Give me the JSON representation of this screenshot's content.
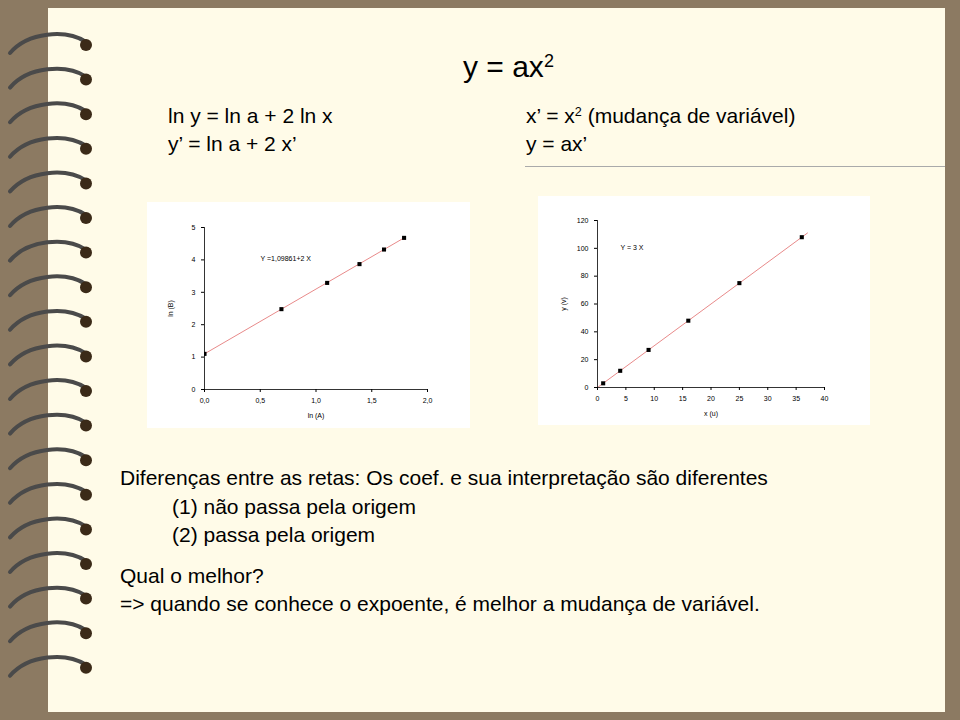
{
  "slide": {
    "title": [
      "y = ax",
      "2"
    ],
    "left_formulas": [
      [
        "ln y = ln a + 2 ln x"
      ],
      [
        "y’ = ln a + 2 x’"
      ]
    ],
    "right_formulas": [
      [
        "x’ = x",
        "2",
        " (mudança de variável)"
      ],
      [
        "y = ax’"
      ]
    ],
    "body": [
      "Diferenças entre as retas: Os coef. e sua interpretação são diferentes",
      "(1) não passa pela origem",
      "(2) passa pela origem",
      "Qual o melhor?",
      "=> quando se conhece o expoente, é melhor a mudança de variável."
    ]
  },
  "chart_data": [
    {
      "type": "scatter",
      "x_label": "ln (A)",
      "y_label": "ln (B)",
      "annotations": [
        "Y =1,09861+2 X"
      ],
      "xlim": [
        0,
        2
      ],
      "ylim": [
        0,
        5
      ],
      "xticks": [
        {
          "value": 0,
          "label": "0,0"
        },
        {
          "value": 0.5,
          "label": "0,5"
        },
        {
          "value": 1,
          "label": "1,0"
        },
        {
          "value": 1.5,
          "label": "1,5"
        },
        {
          "value": 2,
          "label": "2,0"
        }
      ],
      "yticks": [
        0,
        1,
        2,
        3,
        4,
        5
      ],
      "grid": false,
      "series": [
        {
          "type": "line",
          "color": "#e88a8a",
          "x": [
            0,
            1.8
          ],
          "values": [
            1.1,
            4.7
          ]
        },
        {
          "type": "scatter",
          "marker": "square",
          "color": "#000000",
          "x": [
            0,
            0.69,
            1.1,
            1.39,
            1.61,
            1.79
          ],
          "values": [
            1.1,
            2.48,
            3.29,
            3.87,
            4.32,
            4.68
          ]
        }
      ]
    },
    {
      "type": "scatter",
      "x_label": "x (u)",
      "y_label": "y (v)",
      "annotations": [
        "Y = 3 X"
      ],
      "xlim": [
        0,
        40
      ],
      "ylim": [
        0,
        120
      ],
      "xticks": [
        0,
        5,
        10,
        15,
        20,
        25,
        30,
        35,
        40
      ],
      "yticks": [
        0,
        20,
        40,
        60,
        80,
        100,
        120
      ],
      "grid": false,
      "series": [
        {
          "type": "line",
          "color": "#e88a8a",
          "x": [
            0,
            37
          ],
          "values": [
            0,
            111
          ]
        },
        {
          "type": "scatter",
          "marker": "square",
          "color": "#000000",
          "x": [
            1,
            4,
            9,
            16,
            25,
            36
          ],
          "values": [
            3,
            12,
            27,
            48,
            75,
            108
          ]
        }
      ]
    }
  ]
}
